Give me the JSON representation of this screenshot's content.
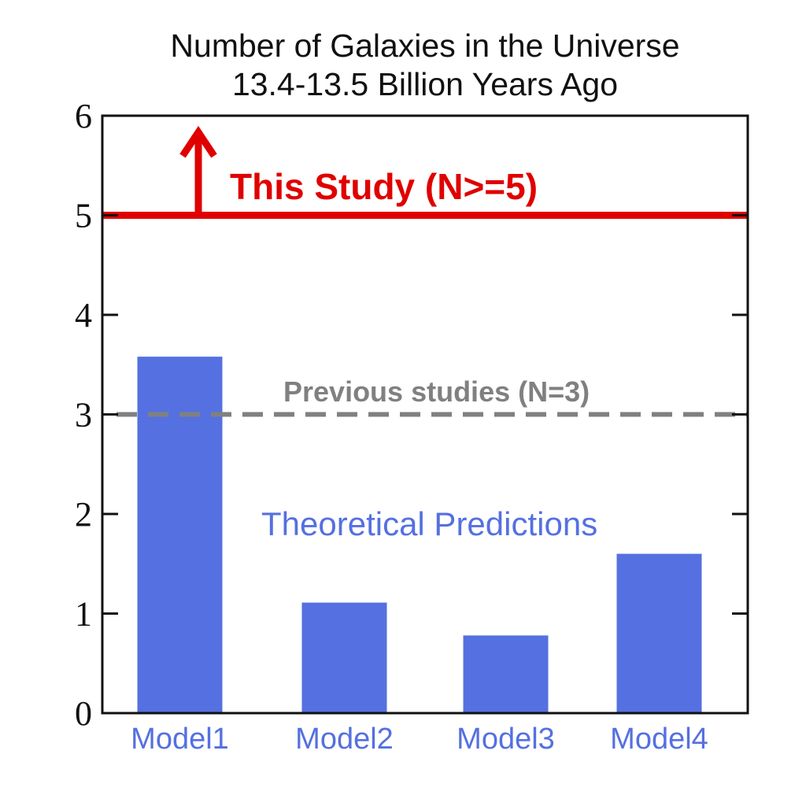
{
  "chart_data": {
    "type": "bar",
    "title_line1": "Number of Galaxies in the Universe",
    "title_line2": "13.4-13.5 Billion Years Ago",
    "xlabel": "",
    "ylabel": "",
    "categories": [
      "Model1",
      "Model2",
      "Model3",
      "Model4"
    ],
    "values": [
      3.58,
      1.11,
      0.78,
      1.6
    ],
    "ylim": [
      0,
      6
    ],
    "yticks": [
      "0",
      "1",
      "2",
      "3",
      "4",
      "5",
      "6"
    ],
    "grid": false,
    "reference_lines": [
      {
        "label": "This Study (N>=5)",
        "value": 5,
        "style": "solid",
        "arrow": "up",
        "color": "#e00000"
      },
      {
        "label": "Previous studies (N=3)",
        "value": 3,
        "style": "dashed",
        "color": "#808080"
      }
    ],
    "annotations": [
      {
        "text": "Theoretical Predictions",
        "color": "#5570e0"
      }
    ],
    "colors": {
      "bars": "#5570e0",
      "category_labels": "#5570e0",
      "axes": "#111111"
    }
  }
}
